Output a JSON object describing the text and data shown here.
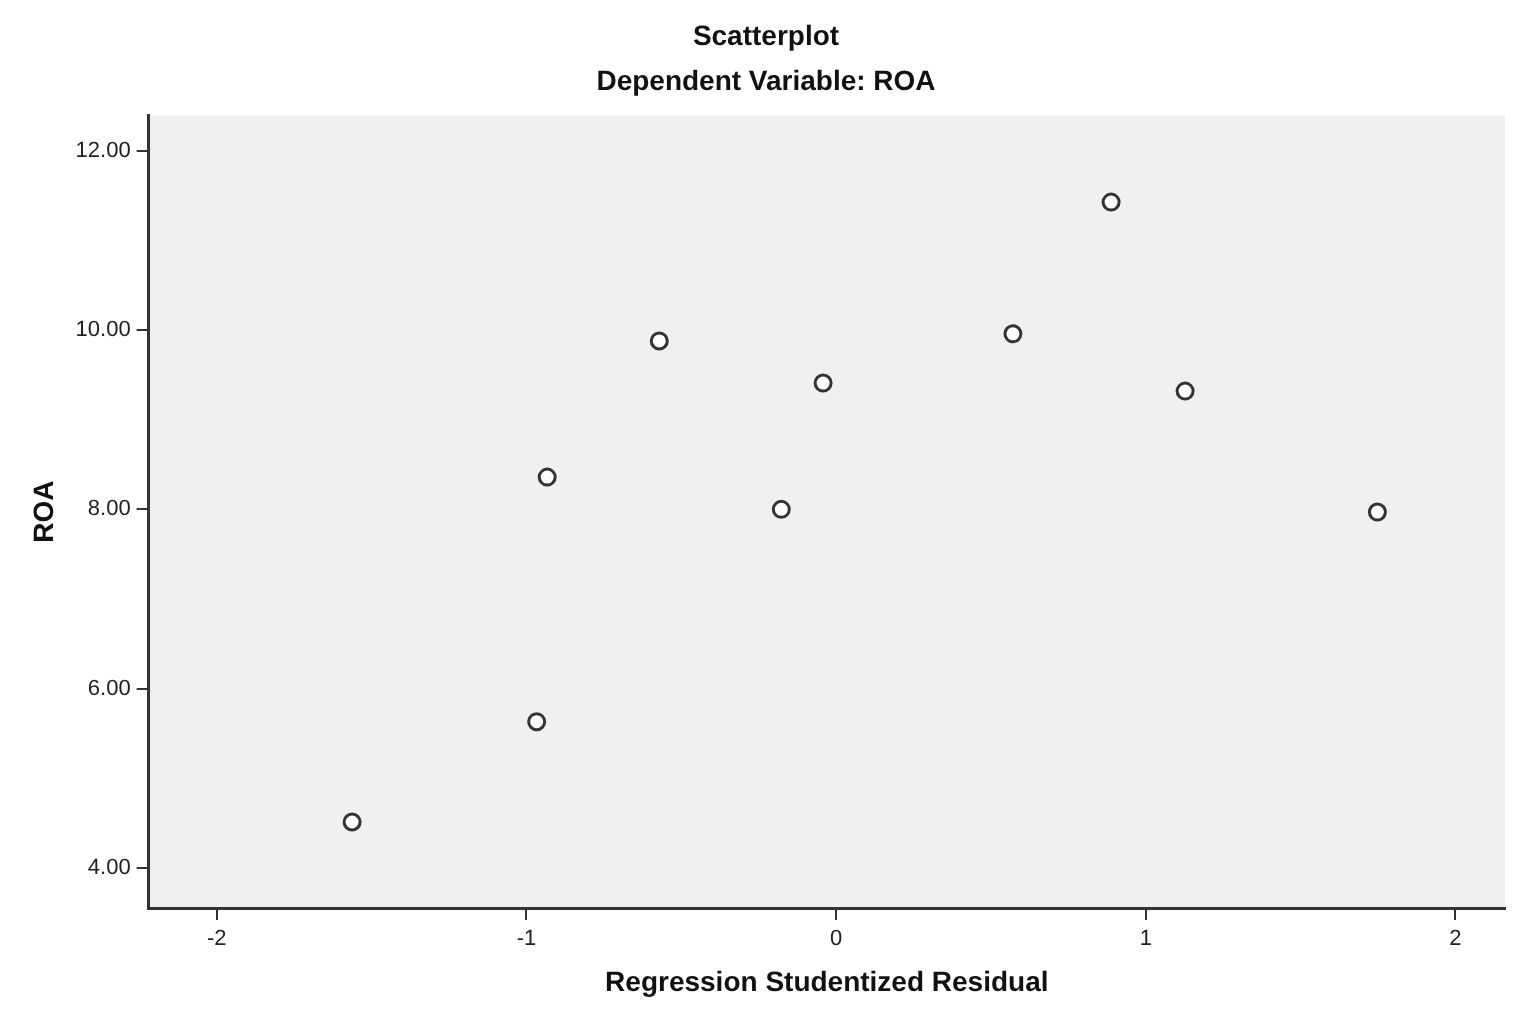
{
  "chart_data": {
    "type": "scatter",
    "title": "Scatterplot",
    "subtitle": "Dependent Variable: ROA",
    "xlabel": "Regression Studentized Residual",
    "ylabel": "ROA",
    "x": [
      -1.563,
      -0.967,
      -0.933,
      -0.571,
      -0.177,
      -0.042,
      0.571,
      0.888,
      1.127,
      1.748
    ],
    "values": [
      4.51,
      5.63,
      8.36,
      9.88,
      8.0,
      9.41,
      9.96,
      11.43,
      9.32,
      7.97
    ],
    "color": "#333333",
    "marker": "circle",
    "grid": false,
    "legend": false,
    "xlim": [
      -2.22,
      2.16
    ],
    "xticks": [
      -2,
      -1,
      0,
      1,
      2
    ],
    "ylim": [
      3.55,
      12.4
    ],
    "yticks": [
      {
        "value": 4,
        "label": "4.00"
      },
      {
        "value": 6,
        "label": "6.00"
      },
      {
        "value": 8,
        "label": "8.00"
      },
      {
        "value": 10,
        "label": "10.00"
      },
      {
        "value": 12,
        "label": "12.00"
      }
    ]
  }
}
